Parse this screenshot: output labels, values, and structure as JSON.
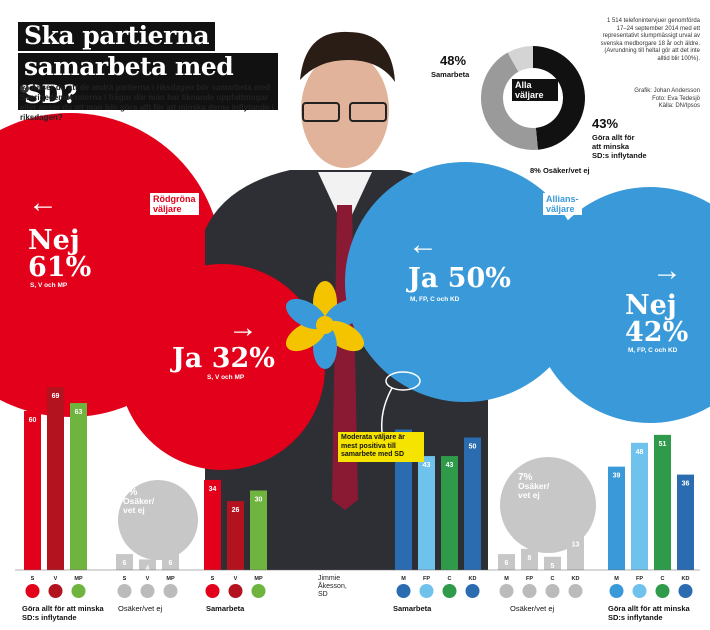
{
  "header": {
    "title_line1": "Ska partierna",
    "title_line2": "samarbeta med SD?",
    "question_icon": "question-icon",
    "question": "Anser du att de andra partierna i riksdagen bör samarbeta med Sverigedemokraterna i frågor där man har liknande uppfattningar eller anser du att man bör göra allt för att minska deras inflytande i riksdagen?"
  },
  "methodology": "1 514 telefonintervjuer genomförda 17–24 september 2014 med ett representativt slumpmässigt urval av svenska medborgare 18 år och äldre. (Avrundning till heltal gör att det inte alltid blir 100%).",
  "credits": [
    "Grafik: Johan Andersson",
    "Foto: Eva Tedesjö",
    "Källa: DN/Ipsos"
  ],
  "colors": {
    "red": "#e2001a",
    "red_dark": "#b3121f",
    "green": "#6fb43f",
    "blue": "#3a9ad9",
    "blue_light": "#6ec2ec",
    "green_c": "#2e9a4a",
    "blue_dark": "#2b6cb0",
    "grey": "#c7c7c7",
    "black": "#111111"
  },
  "portrait": {
    "name_line1": "Jimmie",
    "name_line2": "Åkesson,",
    "name_line3": "SD"
  },
  "callout": "Moderata väljare är mest positiva till samarbete med SD",
  "chart_data": [
    {
      "type": "pie",
      "title": "Alla väljare",
      "categories": [
        "Samarbeta",
        "Göra allt för att minska SD:s inflytande",
        "Osäker/vet ej"
      ],
      "values": [
        48,
        43,
        8
      ],
      "value_labels": [
        "48%",
        "43%",
        "8%"
      ],
      "colors": [
        "#111111",
        "#9a9a9a",
        "#d4d4d4"
      ]
    },
    {
      "type": "bar",
      "title": "Rödgröna väljare",
      "categories": [
        "S",
        "V",
        "MP"
      ],
      "series": [
        {
          "name": "Göra allt för att minska SD:s inflytande",
          "values": [
            60,
            69,
            63
          ]
        },
        {
          "name": "Osäker/vet ej",
          "values": [
            6,
            4,
            6
          ]
        },
        {
          "name": "Samarbeta",
          "values": [
            34,
            26,
            30
          ]
        }
      ],
      "summary": {
        "Nej": "61%",
        "Ja": "32%",
        "Osäker/vet ej": "6%"
      },
      "summary_sub": "S, V och MP"
    },
    {
      "type": "bar",
      "title": "Allians-väljare",
      "categories": [
        "M",
        "FP",
        "C",
        "KD"
      ],
      "series": [
        {
          "name": "Samarbeta",
          "values": [
            53,
            43,
            43,
            50
          ]
        },
        {
          "name": "Osäker/vet ej",
          "values": [
            6,
            8,
            5,
            13
          ]
        },
        {
          "name": "Göra allt för att minska SD:s inflytande",
          "values": [
            39,
            48,
            51,
            36
          ]
        }
      ],
      "summary": {
        "Ja": "50%",
        "Nej": "42%",
        "Osäker/vet ej": "7%"
      },
      "summary_sub": "M, FP, C och KD"
    }
  ],
  "labels": {
    "alla_valjare": "Alla väljare",
    "samarbeta_pct": "48%",
    "samarbeta": "Samarbeta",
    "minska_pct": "43%",
    "minska_line1": "Göra allt för",
    "minska_line2": "att minska",
    "minska_line3": "SD:s inflytande",
    "osaker_pct": "8%",
    "osaker": "Osäker/vet ej",
    "rodgrona_line1": "Rödgröna",
    "rodgrona_line2": "väljare",
    "allians_line1": "Allians-",
    "allians_line2": "väljare",
    "nej": "Nej",
    "nej_red_pct": "61%",
    "red_parties": "S, V och MP",
    "ja": "Ja",
    "ja_red_pct": "32%",
    "ja_blue": "Ja 50%",
    "blue_parties": "M, FP, C och KD",
    "nej_blue_pct": "42%",
    "osaker_red_pct": "6%",
    "osaker_blue_pct": "7%",
    "osaker_line1": "Osäker/",
    "osaker_line2": "vet ej",
    "arrow_left": "←",
    "arrow_right": "→",
    "bottom_minska_line1": "Göra allt för att minska",
    "bottom_minska_line2": "SD:s inflytande",
    "bottom_osaker": "Osäker/vet ej",
    "bottom_samarbeta": "Samarbeta"
  }
}
